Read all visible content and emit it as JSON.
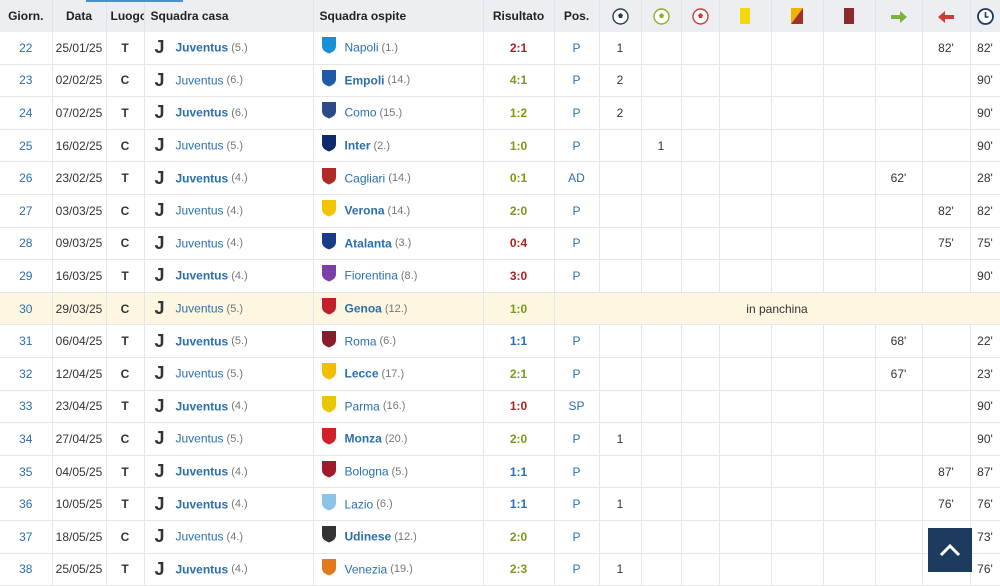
{
  "headers": {
    "giorn": "Giorn.",
    "data": "Data",
    "luogo": "Luogo",
    "casa": "Squadra casa",
    "ospite": "Squadra ospite",
    "risultato": "Risultato",
    "pos": "Pos."
  },
  "icons": [
    "goal-icon",
    "penalty-goal-icon",
    "own-goal-icon",
    "yellow-card-icon",
    "second-yellow-card-icon",
    "red-card-icon",
    "sub-in-icon",
    "sub-out-icon",
    "minutes-played-icon"
  ],
  "colors": {
    "win": "#7a9a1a",
    "draw": "#2a6fad",
    "loss": "#b02020",
    "link": "#2a6fad",
    "highlight": "#fdf7e2",
    "accent": "#1c3b5e"
  },
  "rows": [
    {
      "giorn": "22",
      "data": "25/01/25",
      "luogo": "T",
      "casa": "Juventus",
      "casa_rank": "(5.)",
      "casa_bold": true,
      "ospite": "Napoli",
      "ospite_rank": "(1.)",
      "ospite_bold": false,
      "risultato": "2:1",
      "res_type": "l",
      "pos": "P",
      "gol": "1",
      "rig": "",
      "aut": "",
      "amm": "",
      "dopp": "",
      "esp": "",
      "in": "",
      "out": "82'",
      "min": "82'"
    },
    {
      "giorn": "23",
      "data": "02/02/25",
      "luogo": "C",
      "casa": "Juventus",
      "casa_rank": "(6.)",
      "casa_bold": false,
      "ospite": "Empoli",
      "ospite_rank": "(14.)",
      "ospite_bold": true,
      "risultato": "4:1",
      "res_type": "w",
      "pos": "P",
      "gol": "2",
      "rig": "",
      "aut": "",
      "amm": "",
      "dopp": "",
      "esp": "",
      "in": "",
      "out": "",
      "min": "90'"
    },
    {
      "giorn": "24",
      "data": "07/02/25",
      "luogo": "T",
      "casa": "Juventus",
      "casa_rank": "(6.)",
      "casa_bold": true,
      "ospite": "Como",
      "ospite_rank": "(15.)",
      "ospite_bold": false,
      "risultato": "1:2",
      "res_type": "w",
      "pos": "P",
      "gol": "2",
      "rig": "",
      "aut": "",
      "amm": "",
      "dopp": "",
      "esp": "",
      "in": "",
      "out": "",
      "min": "90'"
    },
    {
      "giorn": "25",
      "data": "16/02/25",
      "luogo": "C",
      "casa": "Juventus",
      "casa_rank": "(5.)",
      "casa_bold": false,
      "ospite": "Inter",
      "ospite_rank": "(2.)",
      "ospite_bold": true,
      "risultato": "1:0",
      "res_type": "w",
      "pos": "P",
      "gol": "",
      "rig": "1",
      "aut": "",
      "amm": "",
      "dopp": "",
      "esp": "",
      "in": "",
      "out": "",
      "min": "90'"
    },
    {
      "giorn": "26",
      "data": "23/02/25",
      "luogo": "T",
      "casa": "Juventus",
      "casa_rank": "(4.)",
      "casa_bold": true,
      "ospite": "Cagliari",
      "ospite_rank": "(14.)",
      "ospite_bold": false,
      "risultato": "0:1",
      "res_type": "w",
      "pos": "AD",
      "gol": "",
      "rig": "",
      "aut": "",
      "amm": "",
      "dopp": "",
      "esp": "",
      "in": "62'",
      "out": "",
      "min": "28'"
    },
    {
      "giorn": "27",
      "data": "03/03/25",
      "luogo": "C",
      "casa": "Juventus",
      "casa_rank": "(4.)",
      "casa_bold": false,
      "ospite": "Verona",
      "ospite_rank": "(14.)",
      "ospite_bold": true,
      "risultato": "2:0",
      "res_type": "w",
      "pos": "P",
      "gol": "",
      "rig": "",
      "aut": "",
      "amm": "",
      "dopp": "",
      "esp": "",
      "in": "",
      "out": "82'",
      "min": "82'"
    },
    {
      "giorn": "28",
      "data": "09/03/25",
      "luogo": "C",
      "casa": "Juventus",
      "casa_rank": "(4.)",
      "casa_bold": false,
      "ospite": "Atalanta",
      "ospite_rank": "(3.)",
      "ospite_bold": true,
      "risultato": "0:4",
      "res_type": "l",
      "pos": "P",
      "gol": "",
      "rig": "",
      "aut": "",
      "amm": "",
      "dopp": "",
      "esp": "",
      "in": "",
      "out": "75'",
      "min": "75'"
    },
    {
      "giorn": "29",
      "data": "16/03/25",
      "luogo": "T",
      "casa": "Juventus",
      "casa_rank": "(4.)",
      "casa_bold": true,
      "ospite": "Fiorentina",
      "ospite_rank": "(8.)",
      "ospite_bold": false,
      "risultato": "3:0",
      "res_type": "l",
      "pos": "P",
      "gol": "",
      "rig": "",
      "aut": "",
      "amm": "",
      "dopp": "",
      "esp": "",
      "in": "",
      "out": "",
      "min": "90'"
    },
    {
      "giorn": "30",
      "data": "29/03/25",
      "luogo": "C",
      "casa": "Juventus",
      "casa_rank": "(5.)",
      "casa_bold": false,
      "ospite": "Genoa",
      "ospite_rank": "(12.)",
      "ospite_bold": true,
      "risultato": "1:0",
      "res_type": "w",
      "note": "in panchina",
      "highlight": true
    },
    {
      "giorn": "31",
      "data": "06/04/25",
      "luogo": "T",
      "casa": "Juventus",
      "casa_rank": "(5.)",
      "casa_bold": true,
      "ospite": "Roma",
      "ospite_rank": "(6.)",
      "ospite_bold": false,
      "risultato": "1:1",
      "res_type": "d",
      "pos": "P",
      "gol": "",
      "rig": "",
      "aut": "",
      "amm": "",
      "dopp": "",
      "esp": "",
      "in": "68'",
      "out": "",
      "min": "22'"
    },
    {
      "giorn": "32",
      "data": "12/04/25",
      "luogo": "C",
      "casa": "Juventus",
      "casa_rank": "(5.)",
      "casa_bold": false,
      "ospite": "Lecce",
      "ospite_rank": "(17.)",
      "ospite_bold": true,
      "risultato": "2:1",
      "res_type": "w",
      "pos": "P",
      "gol": "",
      "rig": "",
      "aut": "",
      "amm": "",
      "dopp": "",
      "esp": "",
      "in": "67'",
      "out": "",
      "min": "23'"
    },
    {
      "giorn": "33",
      "data": "23/04/25",
      "luogo": "T",
      "casa": "Juventus",
      "casa_rank": "(4.)",
      "casa_bold": true,
      "ospite": "Parma",
      "ospite_rank": "(16.)",
      "ospite_bold": false,
      "risultato": "1:0",
      "res_type": "l",
      "pos": "SP",
      "gol": "",
      "rig": "",
      "aut": "",
      "amm": "",
      "dopp": "",
      "esp": "",
      "in": "",
      "out": "",
      "min": "90'"
    },
    {
      "giorn": "34",
      "data": "27/04/25",
      "luogo": "C",
      "casa": "Juventus",
      "casa_rank": "(5.)",
      "casa_bold": false,
      "ospite": "Monza",
      "ospite_rank": "(20.)",
      "ospite_bold": true,
      "risultato": "2:0",
      "res_type": "w",
      "pos": "P",
      "gol": "1",
      "rig": "",
      "aut": "",
      "amm": "",
      "dopp": "",
      "esp": "",
      "in": "",
      "out": "",
      "min": "90'"
    },
    {
      "giorn": "35",
      "data": "04/05/25",
      "luogo": "T",
      "casa": "Juventus",
      "casa_rank": "(4.)",
      "casa_bold": true,
      "ospite": "Bologna",
      "ospite_rank": "(5.)",
      "ospite_bold": false,
      "risultato": "1:1",
      "res_type": "d",
      "pos": "P",
      "gol": "",
      "rig": "",
      "aut": "",
      "amm": "",
      "dopp": "",
      "esp": "",
      "in": "",
      "out": "87'",
      "min": "87'"
    },
    {
      "giorn": "36",
      "data": "10/05/25",
      "luogo": "T",
      "casa": "Juventus",
      "casa_rank": "(4.)",
      "casa_bold": true,
      "ospite": "Lazio",
      "ospite_rank": "(6.)",
      "ospite_bold": false,
      "risultato": "1:1",
      "res_type": "d",
      "pos": "P",
      "gol": "1",
      "rig": "",
      "aut": "",
      "amm": "",
      "dopp": "",
      "esp": "",
      "in": "",
      "out": "76'",
      "min": "76'"
    },
    {
      "giorn": "37",
      "data": "18/05/25",
      "luogo": "C",
      "casa": "Juventus",
      "casa_rank": "(4.)",
      "casa_bold": false,
      "ospite": "Udinese",
      "ospite_rank": "(12.)",
      "ospite_bold": true,
      "risultato": "2:0",
      "res_type": "w",
      "pos": "P",
      "gol": "",
      "rig": "",
      "aut": "",
      "amm": "",
      "dopp": "",
      "esp": "",
      "in": "",
      "out": "",
      "min": "73'"
    },
    {
      "giorn": "38",
      "data": "25/05/25",
      "luogo": "T",
      "casa": "Juventus",
      "casa_rank": "(4.)",
      "casa_bold": true,
      "ospite": "Venezia",
      "ospite_rank": "(19.)",
      "ospite_bold": false,
      "risultato": "2:3",
      "res_type": "w",
      "pos": "P",
      "gol": "1",
      "rig": "",
      "aut": "",
      "amm": "",
      "dopp": "",
      "esp": "",
      "in": "",
      "out": "",
      "min": "76'"
    }
  ]
}
